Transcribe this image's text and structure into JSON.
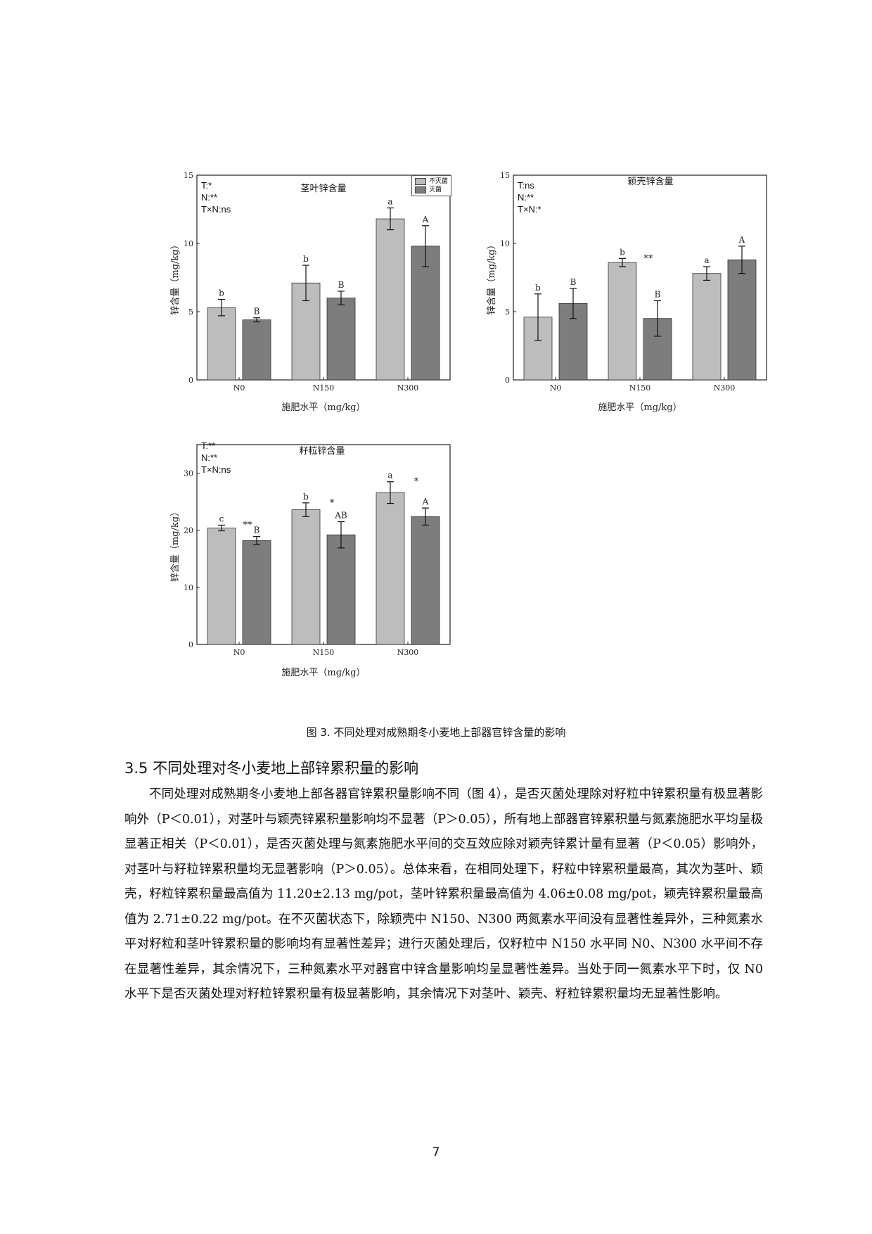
{
  "charts": {
    "ylabel": "锌含量（mg/kg）",
    "xlabel": "施肥水平（mg/kg）",
    "legend": [
      "不灭菌",
      "灭菌"
    ],
    "colors": {
      "unsterilized": "#bdbdbd",
      "sterilized": "#7d7d7d"
    }
  },
  "chart_data": [
    {
      "type": "bar",
      "title": "茎叶锌含量",
      "categories": [
        "N0",
        "N150",
        "N300"
      ],
      "series": [
        {
          "name": "不灭菌",
          "values": [
            5.3,
            7.1,
            11.8
          ],
          "errors": [
            0.6,
            1.3,
            0.8
          ],
          "letters": [
            "b",
            "b",
            "a"
          ]
        },
        {
          "name": "灭菌",
          "values": [
            4.4,
            6.0,
            9.8
          ],
          "errors": [
            0.15,
            0.5,
            1.5
          ],
          "letters": [
            "B",
            "B",
            "A"
          ]
        }
      ],
      "stars": [
        "",
        "",
        ""
      ],
      "stats": [
        "T:*",
        "N:**",
        "T×N:ns"
      ],
      "ylim": [
        0,
        15
      ],
      "yticks": [
        0,
        5,
        10,
        15
      ],
      "legend": "top-right"
    },
    {
      "type": "bar",
      "title": "颖壳锌含量",
      "categories": [
        "N0",
        "N150",
        "N300"
      ],
      "series": [
        {
          "name": "不灭菌",
          "values": [
            4.6,
            8.6,
            7.8
          ],
          "errors": [
            1.7,
            0.3,
            0.5
          ],
          "letters": [
            "b",
            "b",
            "a"
          ]
        },
        {
          "name": "灭菌",
          "values": [
            5.6,
            4.5,
            8.8
          ],
          "errors": [
            1.1,
            1.3,
            1.0
          ],
          "letters": [
            "B",
            "B",
            "A"
          ]
        }
      ],
      "stars": [
        "",
        "**",
        ""
      ],
      "stats": [
        "T:ns",
        "N:**",
        "T×N:*"
      ],
      "ylim": [
        0,
        15
      ],
      "yticks": [
        0,
        5,
        10,
        15
      ]
    },
    {
      "type": "bar",
      "title": "籽粒锌含量",
      "categories": [
        "N0",
        "N150",
        "N300"
      ],
      "series": [
        {
          "name": "不灭菌",
          "values": [
            20.4,
            23.6,
            26.6
          ],
          "errors": [
            0.5,
            1.2,
            1.9
          ],
          "letters": [
            "c",
            "b",
            "a"
          ]
        },
        {
          "name": "灭菌",
          "values": [
            18.2,
            19.2,
            22.4
          ],
          "errors": [
            0.7,
            2.3,
            1.5
          ],
          "letters": [
            "B",
            "AB",
            "A"
          ]
        }
      ],
      "stars": [
        "**",
        "*",
        "*"
      ],
      "stats": [
        "T:**",
        "N:**",
        "T×N:ns"
      ],
      "ylim": [
        0,
        35
      ],
      "yticks": [
        0,
        10,
        20,
        30
      ]
    }
  ],
  "figure_caption": "图 3.  不同处理对成熟期冬小麦地上部器官锌含量的影响",
  "section_title": "3.5 不同处理对冬小麦地上部锌累积量的影响",
  "paragraph": "不同处理对成熟期冬小麦地上部各器官锌累积量影响不同（图 4），是否灭菌处理除对籽粒中锌累积量有极显著影响外（P＜0.01），对茎叶与颖壳锌累积量影响均不显著（P＞0.05），所有地上部器官锌累积量与氮素施肥水平均呈极显著正相关（P＜0.01），是否灭菌处理与氮素施肥水平间的交互效应除对颖壳锌累计量有显著（P＜0.05）影响外，对茎叶与籽粒锌累积量均无显著影响（P＞0.05）。总体来看，在相同处理下，籽粒中锌累积量最高，其次为茎叶、颖壳，籽粒锌累积量最高值为 11.20±2.13 mg/pot，茎叶锌累积量最高值为 4.06±0.08 mg/pot，颖壳锌累积量最高值为 2.71±0.22 mg/pot。在不灭菌状态下，除颖壳中 N150、N300 两氮素水平间没有显著性差异外，三种氮素水平对籽粒和茎叶锌累积量的影响均有显著性差异；进行灭菌处理后，仅籽粒中 N150 水平同 N0、N300 水平间不存在显著性差异，其余情况下，三种氮素水平对器官中锌含量影响均呈显著性差异。当处于同一氮素水平下时，仅 N0 水平下是否灭菌处理对籽粒锌累积量有极显著影响，其余情况下对茎叶、颖壳、籽粒锌累积量均无显著性影响。",
  "page_number": "7"
}
